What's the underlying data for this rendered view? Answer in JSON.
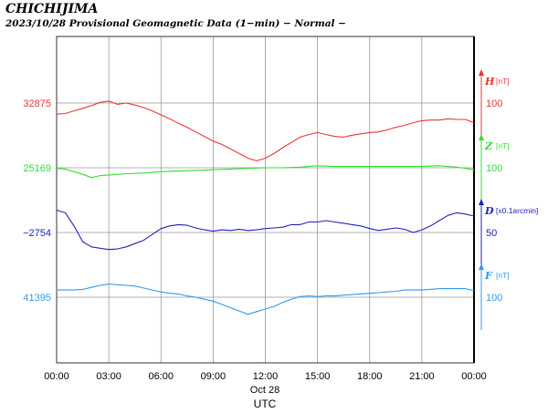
{
  "header": {
    "station": "CHICHIJIMA",
    "subtitle": "2023/10/28  Provisional Geomagnetic Data (1−min)  − Normal −"
  },
  "chart_data": {
    "type": "line",
    "xlabel": "UTC",
    "date_label": "Oct 28",
    "x_ticks": [
      "00:00",
      "03:00",
      "06:00",
      "09:00",
      "12:00",
      "15:00",
      "18:00",
      "21:00",
      "00:00"
    ],
    "grid": true,
    "series": [
      {
        "name": "H",
        "unit": "[nT]",
        "color": "#ee3333",
        "baseline_label": "32875",
        "scale_label": "100",
        "hours": [
          0,
          0.5,
          1,
          1.5,
          2,
          2.5,
          3,
          3.5,
          4,
          4.5,
          5,
          5.5,
          6,
          6.5,
          7,
          7.5,
          8,
          8.5,
          9,
          9.5,
          10,
          10.5,
          11,
          11.5,
          12,
          12.5,
          13,
          13.5,
          14,
          14.5,
          15,
          15.5,
          16,
          16.5,
          17,
          17.5,
          18,
          18.5,
          19,
          19.5,
          20,
          20.5,
          21,
          21.5,
          22,
          22.5,
          23,
          23.5,
          24
        ],
        "values": [
          -17,
          -16,
          -12,
          -8,
          -4,
          1,
          3,
          -2,
          0,
          -3,
          -7,
          -12,
          -18,
          -24,
          -31,
          -37,
          -44,
          -51,
          -58,
          -63,
          -70,
          -77,
          -84,
          -88,
          -84,
          -77,
          -68,
          -60,
          -52,
          -48,
          -45,
          -48,
          -51,
          -52,
          -49,
          -47,
          -45,
          -44,
          -41,
          -37,
          -34,
          -30,
          -27,
          -26,
          -26,
          -24,
          -25,
          -25,
          -30
        ]
      },
      {
        "name": "Z",
        "unit": "[nT]",
        "color": "#33dd33",
        "baseline_label": "25169",
        "scale_label": "100",
        "hours": [
          0,
          0.5,
          1,
          1.5,
          2,
          2.5,
          3,
          4,
          5,
          6,
          7,
          8,
          9,
          10,
          11,
          12,
          13,
          14,
          15,
          16,
          17,
          18,
          19,
          20,
          21,
          22,
          23,
          23.5,
          24
        ],
        "values": [
          -1,
          -2,
          -6,
          -10,
          -15,
          -12,
          -11,
          -9,
          -8,
          -6,
          -5,
          -4,
          -3,
          -2,
          -1,
          0,
          0,
          1,
          3,
          2,
          2,
          2,
          2,
          2,
          2,
          3,
          1,
          -1,
          -3
        ]
      },
      {
        "name": "D",
        "unit": "[x0.1arcmin]",
        "color": "#2222bb",
        "baseline_label": "−2754",
        "scale_label": "50",
        "hours": [
          0,
          0.5,
          1,
          1.5,
          2,
          2.5,
          3,
          3.5,
          4,
          4.5,
          5,
          5.5,
          6,
          6.5,
          7,
          7.5,
          8,
          8.5,
          9,
          9.5,
          10,
          10.5,
          11,
          11.5,
          12,
          12.5,
          13,
          13.5,
          14,
          14.5,
          15,
          15.5,
          16,
          16.5,
          17,
          17.5,
          18,
          18.5,
          19,
          19.5,
          20,
          20.5,
          21,
          21.5,
          22,
          22.5,
          23,
          23.5,
          24
        ],
        "values": [
          34,
          30,
          10,
          -14,
          -22,
          -24,
          -26,
          -25,
          -22,
          -17,
          -12,
          -3,
          6,
          10,
          12,
          11,
          7,
          4,
          2,
          4,
          3,
          5,
          3,
          4,
          6,
          7,
          8,
          12,
          12,
          16,
          16,
          18,
          16,
          14,
          12,
          10,
          6,
          3,
          5,
          7,
          5,
          0,
          4,
          10,
          18,
          26,
          30,
          28,
          25
        ]
      },
      {
        "name": "F",
        "unit": "[nT]",
        "color": "#3399ee",
        "baseline_label": "41395",
        "scale_label": "100",
        "hours": [
          0,
          0.5,
          1,
          1.5,
          2,
          2.5,
          3,
          3.5,
          4,
          4.5,
          5,
          5.5,
          6,
          6.5,
          7,
          7.5,
          8,
          8.5,
          9,
          9.5,
          10,
          10.5,
          11,
          11.5,
          12,
          12.5,
          13,
          13.5,
          14,
          14.5,
          15,
          15.5,
          16,
          16.5,
          17,
          17.5,
          18,
          18.5,
          19,
          19.5,
          20,
          20.5,
          21,
          21.5,
          22,
          22.5,
          23,
          23.5,
          24
        ],
        "values": [
          11,
          11,
          11,
          12,
          15,
          18,
          20,
          19,
          18,
          17,
          14,
          11,
          8,
          6,
          5,
          2,
          0,
          -3,
          -6,
          -11,
          -16,
          -21,
          -26,
          -22,
          -18,
          -14,
          -8,
          -3,
          1,
          2,
          1,
          2,
          2,
          3,
          4,
          5,
          6,
          7,
          8,
          9,
          11,
          11,
          11,
          12,
          13,
          13,
          13,
          13,
          10
        ]
      }
    ]
  }
}
